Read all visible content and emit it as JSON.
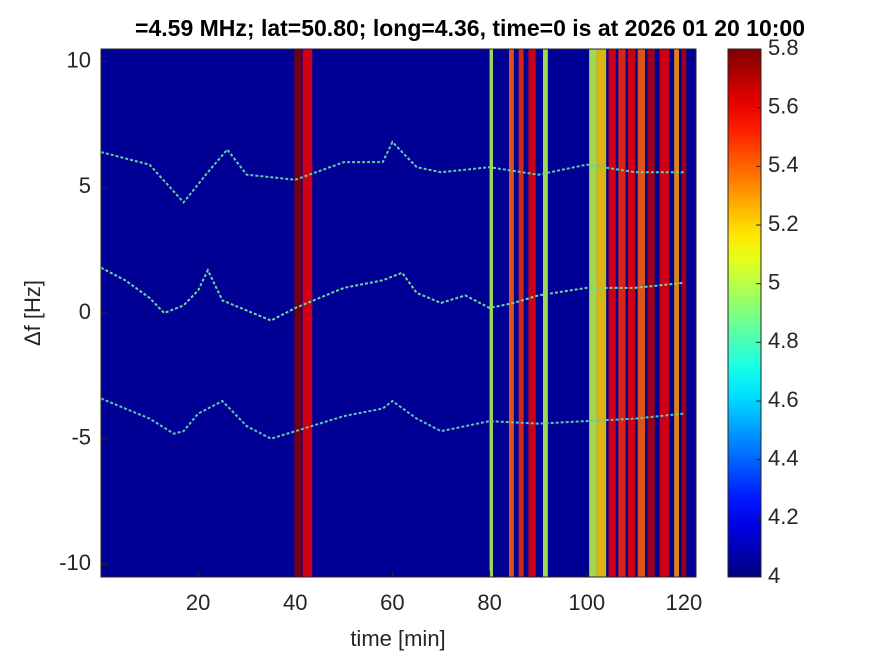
{
  "chart_data": {
    "type": "spectrogram",
    "title": "=4.59 MHz;  lat=50.80; long=4.36, time=0 is at 2026 01 20 10:00",
    "xlabel": "time [min]",
    "ylabel": "Δf [Hz]",
    "xlim": [
      0,
      122.5
    ],
    "ylim": [
      -10.5,
      10.5
    ],
    "xticks": [
      20,
      40,
      60,
      80,
      100,
      120
    ],
    "yticks": [
      -10,
      -5,
      0,
      5,
      10
    ],
    "clim": [
      4,
      5.8
    ],
    "cticks": [
      4,
      4.2,
      4.4,
      4.6,
      4.8,
      5,
      5.2,
      5.4,
      5.6,
      5.8
    ],
    "colormap": "jet",
    "bands": [
      {
        "x": [
          39.8,
          41.2
        ],
        "value": 5.8
      },
      {
        "x": [
          41.5,
          43.5
        ],
        "value": 5.6
      },
      {
        "x": [
          80,
          80.7
        ],
        "value": 5
      },
      {
        "x": [
          84,
          85
        ],
        "value": 5.4
      },
      {
        "x": [
          86,
          87
        ],
        "value": 5.5
      },
      {
        "x": [
          88,
          89.5
        ],
        "value": 5.6
      },
      {
        "x": [
          91,
          92
        ],
        "value": 5
      },
      {
        "x": [
          100.5,
          102
        ],
        "value": 5
      },
      {
        "x": [
          102,
          104
        ],
        "value": 5.2
      },
      {
        "x": [
          104.5,
          106
        ],
        "value": 5.6
      },
      {
        "x": [
          106.5,
          108
        ],
        "value": 5.5
      },
      {
        "x": [
          108.5,
          110
        ],
        "value": 5.6
      },
      {
        "x": [
          110.5,
          112
        ],
        "value": 5.4
      },
      {
        "x": [
          112.5,
          114
        ],
        "value": 5.7
      },
      {
        "x": [
          115,
          117
        ],
        "value": 5.6
      },
      {
        "x": [
          118,
          119
        ],
        "value": 5.3
      },
      {
        "x": [
          119.5,
          120.5
        ],
        "value": 5.7
      }
    ],
    "series": [
      {
        "color": "#5fd0a0",
        "x": [
          0,
          10,
          17,
          22,
          26,
          30,
          40,
          50,
          58,
          60,
          65,
          70,
          80,
          90,
          100,
          110,
          120
        ],
        "values": [
          6.4,
          5.9,
          4.4,
          5.6,
          6.5,
          5.5,
          5.3,
          6.0,
          6.0,
          6.8,
          5.8,
          5.6,
          5.8,
          5.5,
          5.9,
          5.6,
          5.6
        ]
      },
      {
        "color": "#6fd89a",
        "x": [
          0,
          5,
          10,
          13,
          17,
          20,
          22,
          25,
          30,
          35,
          40,
          50,
          58,
          62,
          65,
          70,
          75,
          80,
          85,
          90,
          100,
          110,
          120
        ],
        "values": [
          1.8,
          1.3,
          0.6,
          0.0,
          0.3,
          0.9,
          1.7,
          0.5,
          0.1,
          -0.3,
          0.2,
          1.0,
          1.3,
          1.6,
          0.8,
          0.4,
          0.7,
          0.2,
          0.4,
          0.7,
          1.0,
          1.0,
          1.2
        ]
      },
      {
        "color": "#5fc8b0",
        "x": [
          0,
          5,
          10,
          15,
          17,
          20,
          25,
          30,
          35,
          40,
          50,
          58,
          60,
          65,
          70,
          75,
          80,
          90,
          100,
          110,
          120
        ],
        "values": [
          -3.4,
          -3.8,
          -4.2,
          -4.8,
          -4.7,
          -4.0,
          -3.5,
          -4.5,
          -5.0,
          -4.7,
          -4.1,
          -3.8,
          -3.5,
          -4.2,
          -4.7,
          -4.5,
          -4.3,
          -4.4,
          -4.3,
          -4.2,
          -4.0
        ]
      }
    ]
  }
}
